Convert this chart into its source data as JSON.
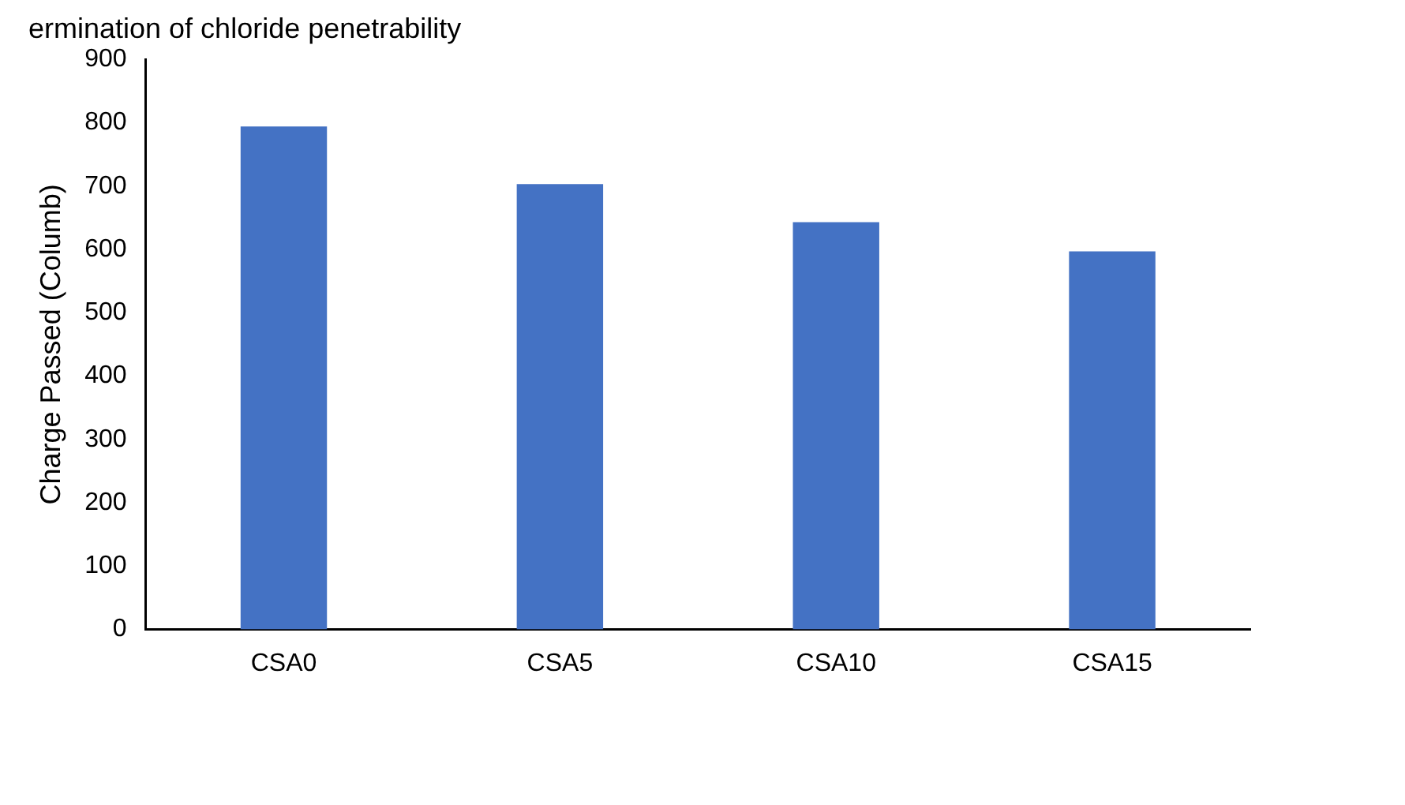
{
  "chart_data": {
    "type": "bar",
    "title": "ermination of chloride penetrability",
    "ylabel": "Charge Passed (Columb)",
    "categories": [
      "CSA0",
      "CSA5",
      "CSA10",
      "CSA15"
    ],
    "values": [
      794,
      703,
      643,
      597
    ],
    "color": "#4472c4",
    "ylim": [
      0,
      900
    ],
    "yticks": [
      0,
      100,
      200,
      300,
      400,
      500,
      600,
      700,
      800,
      900
    ],
    "grid": false,
    "legend": false
  }
}
